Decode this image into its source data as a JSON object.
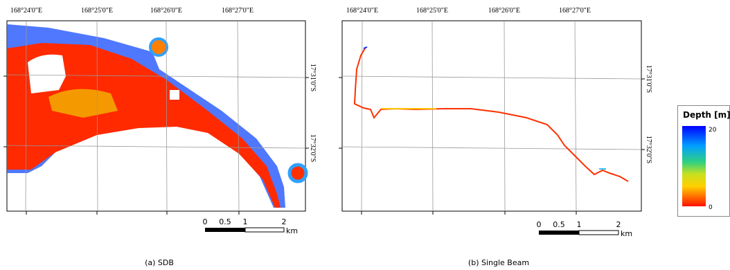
{
  "panels": [
    {
      "top_labels": [
        "168°24'0\"E",
        "168°25'0\"E",
        "168°26'0\"E",
        "168°27'0\"E"
      ],
      "right_labels": [
        "17°31'0\"S",
        "17°32'0\"S"
      ],
      "scale": {
        "ticks": [
          "0",
          "0.5",
          "1",
          "2"
        ],
        "unit": "km"
      },
      "caption": "(a) SDB"
    },
    {
      "top_labels": [
        "168°24'0\"E",
        "168°25'0\"E",
        "168°26'0\"E",
        "168°27'0\"E"
      ],
      "right_labels": [
        "17°31'0\"S",
        "17°32'0\"S"
      ],
      "scale": {
        "ticks": [
          "0",
          "0.5",
          "1",
          "2"
        ],
        "unit": "km"
      },
      "caption": "(b) Single Beam"
    }
  ],
  "legend": {
    "title": "Depth [m]",
    "max": "20",
    "min": "0"
  }
}
